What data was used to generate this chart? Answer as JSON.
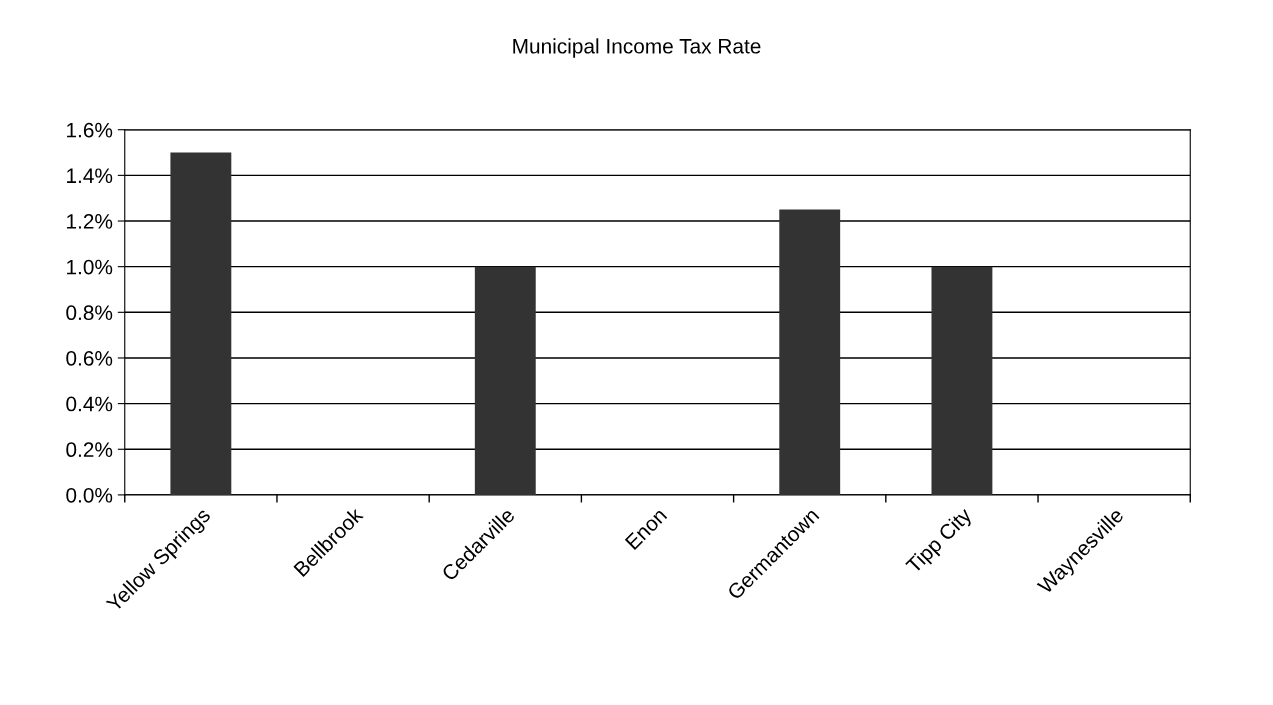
{
  "chart_data": {
    "type": "bar",
    "title": "Municipal Income Tax Rate",
    "categories": [
      "Yellow Springs",
      "Bellbrook",
      "Cedarville",
      "Enon",
      "Germantown",
      "Tipp City",
      "Waynesville"
    ],
    "values": [
      1.5,
      0,
      1.0,
      0,
      1.25,
      1.0,
      0
    ],
    "color": "#333333",
    "ylim": [
      0,
      1.6
    ],
    "yticks": [
      {
        "value": 0,
        "label": "0.0%"
      },
      {
        "value": 0.2,
        "label": "0.2%"
      },
      {
        "value": 0.4,
        "label": "0.4%"
      },
      {
        "value": 0.6,
        "label": "0.6%"
      },
      {
        "value": 0.8,
        "label": "0.8%"
      },
      {
        "value": 1.0,
        "label": "1.0%"
      },
      {
        "value": 1.2,
        "label": "1.2%"
      },
      {
        "value": 1.4,
        "label": "1.4%"
      },
      {
        "value": 1.6,
        "label": "1.6%"
      }
    ],
    "grid": "y",
    "legend": false
  }
}
